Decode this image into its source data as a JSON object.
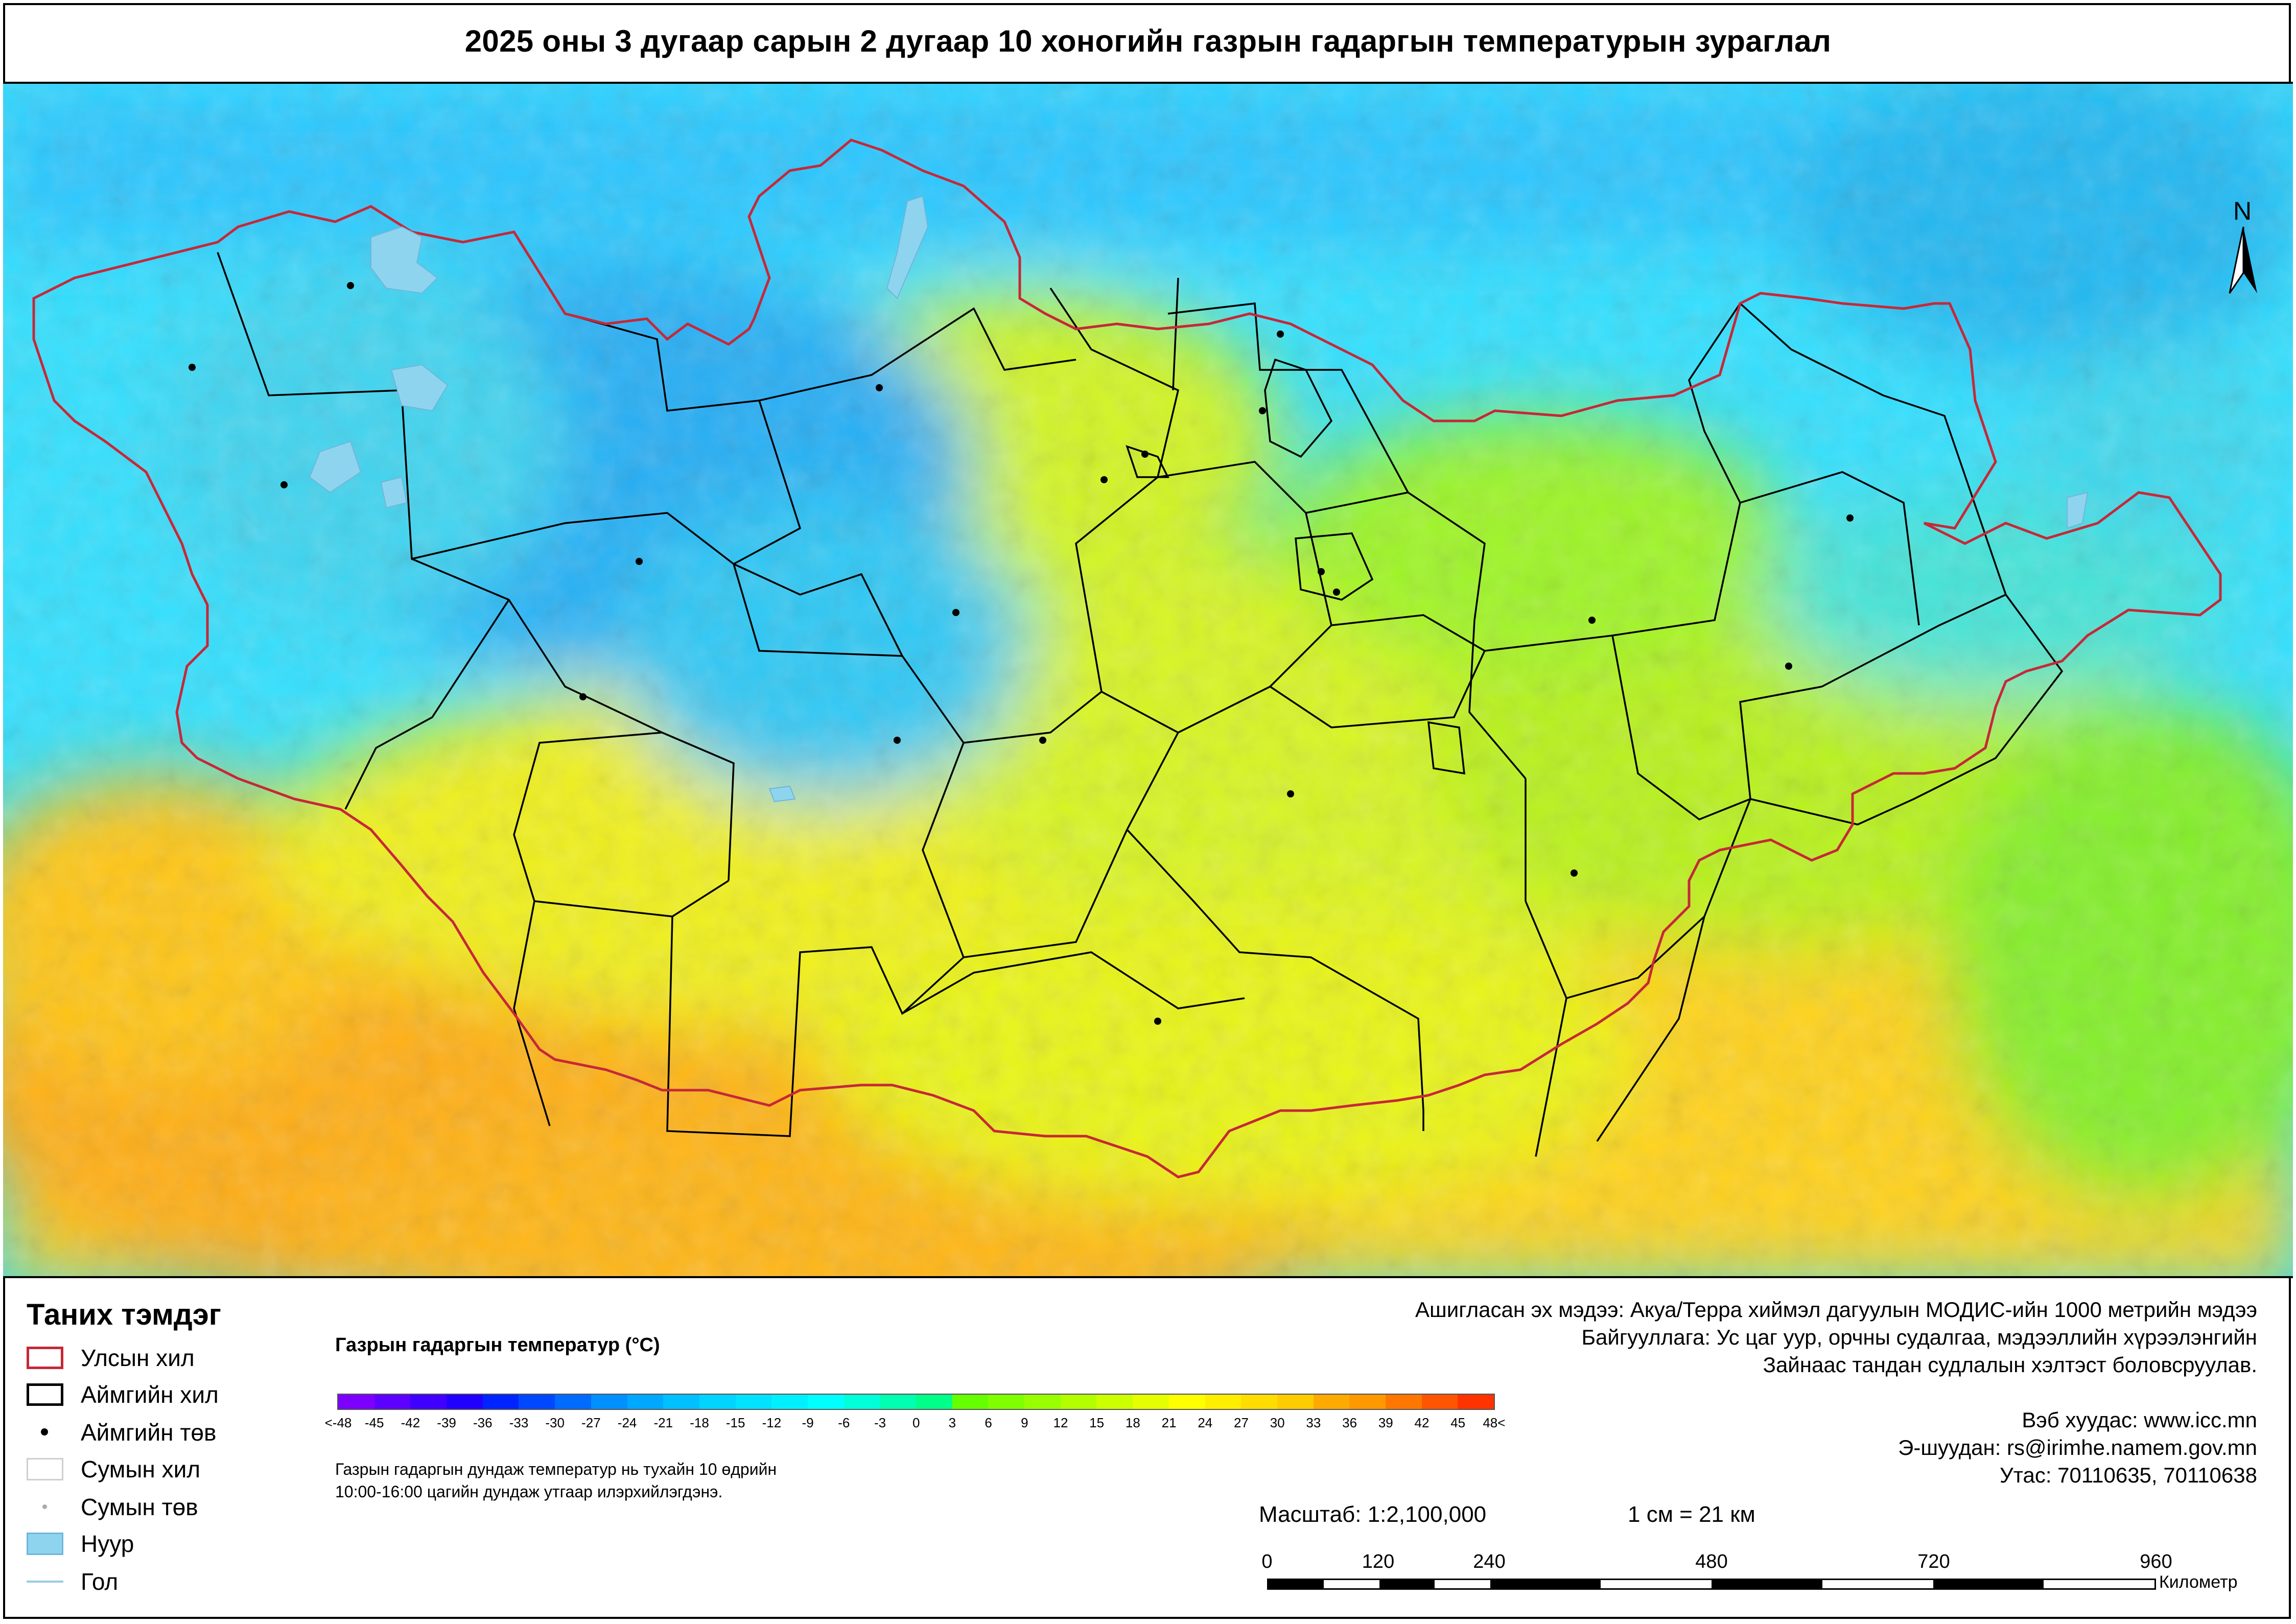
{
  "title": "2025 оны 3 дугаар сарын 2 дугаар 10 хоногийн газрын гадаргын температурын зураглал",
  "map": {
    "north_label": "N",
    "colors": {
      "national_border": "#c62838",
      "aimag_border": "#000000",
      "lake": "#8fd4ef"
    }
  },
  "legend": {
    "title": "Таних тэмдэг",
    "items": [
      {
        "label": "Улсын хил",
        "symbol": "red-outline-box"
      },
      {
        "label": "Аймгийн хил",
        "symbol": "black-outline-box"
      },
      {
        "label": "Аймгийн төв",
        "symbol": "black-dot"
      },
      {
        "label": "Сумын хил",
        "symbol": "gray-outline-box"
      },
      {
        "label": "Сумын төв",
        "symbol": "gray-dot"
      },
      {
        "label": "Нуур",
        "symbol": "lake-fill"
      },
      {
        "label": "Гол",
        "symbol": "river-line"
      }
    ]
  },
  "color_scale": {
    "title": "Газрын гадаргын температур (°C)",
    "labels": [
      "<-48",
      "-45",
      "-42",
      "-39",
      "-36",
      "-33",
      "-30",
      "-27",
      "-24",
      "-21",
      "-18",
      "-15",
      "-12",
      "-9",
      "-6",
      "-3",
      "0",
      "3",
      "6",
      "9",
      "12",
      "15",
      "18",
      "21",
      "24",
      "27",
      "30",
      "33",
      "36",
      "39",
      "42",
      "45",
      "48<"
    ],
    "colors": [
      "#7d00ff",
      "#5e00ff",
      "#3f00ff",
      "#2200ff",
      "#0024ff",
      "#0048ff",
      "#006cff",
      "#0090ff",
      "#00a8ff",
      "#00c0ff",
      "#00d4ff",
      "#00e2ff",
      "#00f0ff",
      "#00ffff",
      "#00ffd8",
      "#00ffb0",
      "#00ff88",
      "#66ff00",
      "#80ff00",
      "#99ff00",
      "#b3ff00",
      "#ccff00",
      "#e6ff00",
      "#ffff00",
      "#ffee00",
      "#ffdd00",
      "#ffcc00",
      "#ffaa00",
      "#ff9900",
      "#ff7700",
      "#ff5500",
      "#ff3300"
    ],
    "note": [
      "Газрын гадаргын дундаж температур нь тухайн 10 өдрийн",
      "10:00-16:00 цагийн дундаж утгаар илэрхийлэгдэнэ."
    ]
  },
  "info": {
    "source_lines": [
      "Ашигласан эх мэдээ: Акуа/Терра хиймэл дагуулын МОДИС-ийн 1000 метрийн мэдээ",
      "Байгууллага: Ус цаг уур, орчны судалгаа, мэдээллийн хүрээлэнгийн",
      "Зайнаас тандан судлалын хэлтэст боловсруулав."
    ],
    "website": "Вэб хуудас: www.icc.mn",
    "email": "Э-шуудан: rs@irimhe.namem.gov.mn",
    "phone": "Утас: 70110635, 70110638"
  },
  "scale": {
    "ratio": "Масштаб: 1:2,100,000",
    "equivalence": "1 см = 21 км",
    "km_labels": [
      "0",
      "120",
      "240",
      "480",
      "720",
      "960"
    ],
    "km_values": [
      0,
      120,
      240,
      480,
      720,
      960
    ],
    "unit": "Километр"
  }
}
